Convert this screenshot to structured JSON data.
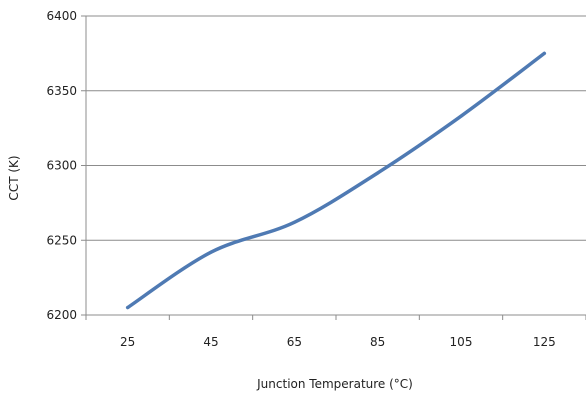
{
  "chart_data": {
    "type": "line",
    "title": "",
    "xlabel": "Junction Temperature (°C)",
    "ylabel": "CCT (K)",
    "categories": [
      "25",
      "45",
      "65",
      "85",
      "105",
      "125"
    ],
    "ylim": [
      6200,
      6400
    ],
    "yticks": [
      "6200",
      "6250",
      "6300",
      "6350",
      "6400"
    ],
    "grid": "horizontal",
    "series": [
      {
        "values": [
          6205,
          6242,
          6262,
          6295,
          6333,
          6375
        ]
      }
    ],
    "colors": {
      "line": "#4f7ab3",
      "grid": "#8c8c8c",
      "axis": "#8c8c8c"
    }
  }
}
